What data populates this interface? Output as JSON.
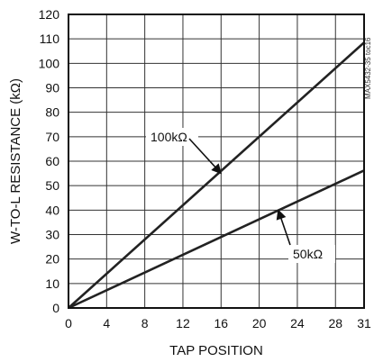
{
  "chart_data": {
    "type": "line",
    "title": "",
    "xlabel": "TAP POSITION",
    "ylabel": "W-TO-L RESISTANCE (kΩ)",
    "xlim": [
      0,
      31
    ],
    "ylim": [
      0,
      120
    ],
    "xticks": [
      0,
      4,
      8,
      12,
      16,
      20,
      24,
      28,
      31
    ],
    "yticks": [
      0,
      10,
      20,
      30,
      40,
      50,
      60,
      70,
      80,
      90,
      100,
      110,
      120
    ],
    "grid": true,
    "series": [
      {
        "name": "100kΩ",
        "x": [
          0,
          31
        ],
        "y": [
          0,
          108.5
        ],
        "label_at": [
          16,
          55
        ]
      },
      {
        "name": "50kΩ",
        "x": [
          0,
          31
        ],
        "y": [
          0,
          56.2
        ],
        "label_at": [
          22,
          40
        ]
      }
    ],
    "annotation": "MAX5432-35 toc16"
  },
  "colors": {
    "line": "#222222",
    "grid": "#333333",
    "background": "#ffffff"
  }
}
